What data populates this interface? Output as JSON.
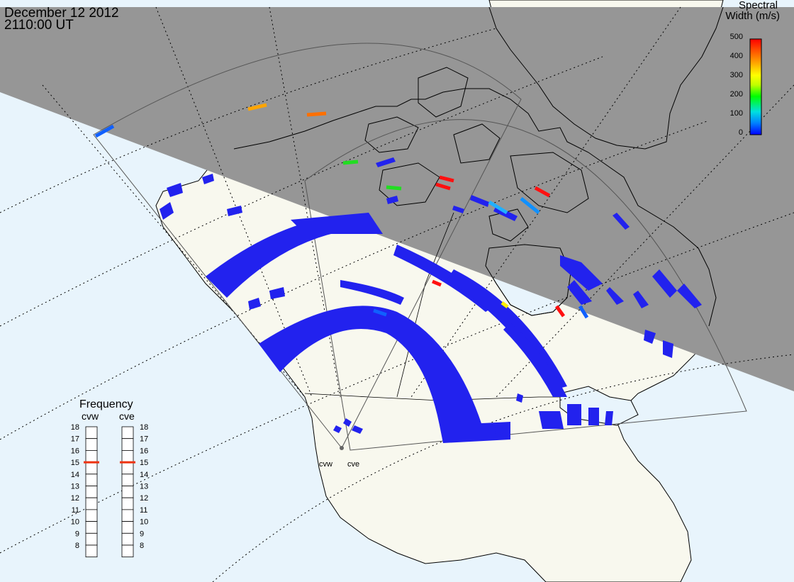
{
  "header": {
    "date": "December 12 2012",
    "time": "2110:00 UT"
  },
  "colorbar": {
    "title_line1": "Spectral",
    "title_line2": "Width (m/s)",
    "ticks": [
      "500",
      "400",
      "300",
      "200",
      "100",
      "0"
    ],
    "colors": [
      "#0000ff",
      "#0080ff",
      "#00e0e0",
      "#00ff00",
      "#c0ff00",
      "#ffff00",
      "#ffa500",
      "#ff5000",
      "#ff0000"
    ]
  },
  "frequency": {
    "title": "Frequency",
    "radars": [
      {
        "name": "cvw",
        "selected": "15"
      },
      {
        "name": "cve",
        "selected": "15"
      }
    ],
    "ticks": [
      "18",
      "17",
      "16",
      "15",
      "14",
      "13",
      "12",
      "11",
      "10",
      "9",
      "8"
    ]
  },
  "site": {
    "labels": [
      "cvw",
      "cve"
    ]
  },
  "colors": {
    "ocean": "#e8f4fc",
    "night": "#969696",
    "land": "#f8f8ee",
    "echo": "#2222ee"
  }
}
